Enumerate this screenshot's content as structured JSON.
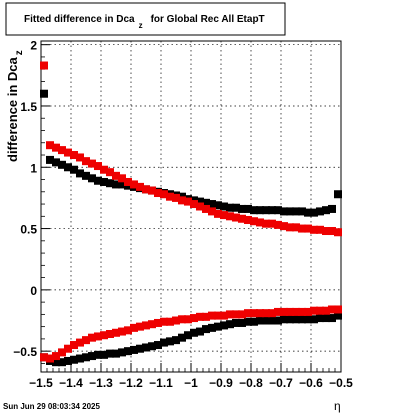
{
  "chart_data": {
    "type": "scatter",
    "title_main": "Fitted difference in Dca",
    "title_sub": "z",
    "title_tail": "for Global Rec All EtapT",
    "ylabel_main": "difference in Dca",
    "ylabel_sub": "z",
    "xlabel": "η",
    "footer": "Sun Jun 29 08:03:34 2025",
    "xlim": [
      -1.5,
      -0.5
    ],
    "ylim": [
      -0.67,
      2.03
    ],
    "x_ticks": [
      -1.5,
      -1.4,
      -1.3,
      -1.2,
      -1.1,
      -1.0,
      -0.9,
      -0.8,
      -0.7,
      -0.6,
      -0.5
    ],
    "x_tick_labels": [
      "−1.5",
      "−1.4",
      "−1.3",
      "−1.2",
      "−1.1",
      "−1",
      "−0.9",
      "−0.8",
      "−0.7",
      "−0.6",
      "−0.5"
    ],
    "y_ticks": [
      -0.5,
      0,
      0.5,
      1,
      1.5,
      2
    ],
    "y_tick_labels": [
      "−0.5",
      "0",
      "0.5",
      "1",
      "1.5",
      "2"
    ],
    "grid": true,
    "colors": {
      "black": "#000000",
      "red": "#ee0000"
    },
    "series": [
      {
        "color": "black",
        "x": [
          -1.49,
          -1.47,
          -1.45,
          -1.43,
          -1.41,
          -1.39,
          -1.37,
          -1.35,
          -1.33,
          -1.31,
          -1.29,
          -1.27,
          -1.25,
          -1.23,
          -1.21,
          -1.19,
          -1.17,
          -1.15,
          -1.13,
          -1.11,
          -1.09,
          -1.07,
          -1.05,
          -1.03,
          -1.01,
          -0.99,
          -0.97,
          -0.95,
          -0.93,
          -0.91,
          -0.89,
          -0.87,
          -0.85,
          -0.83,
          -0.81,
          -0.79,
          -0.77,
          -0.75,
          -0.73,
          -0.71,
          -0.69,
          -0.67,
          -0.65,
          -0.63,
          -0.61,
          -0.59,
          -0.57,
          -0.55,
          -0.53,
          -0.51
        ],
        "y": [
          1.6,
          1.06,
          1.04,
          1.02,
          1.0,
          0.98,
          0.95,
          0.93,
          0.91,
          0.89,
          0.88,
          0.87,
          0.86,
          0.86,
          0.85,
          0.84,
          0.83,
          0.82,
          0.81,
          0.8,
          0.79,
          0.78,
          0.77,
          0.76,
          0.74,
          0.73,
          0.72,
          0.71,
          0.7,
          0.69,
          0.68,
          0.67,
          0.67,
          0.66,
          0.66,
          0.65,
          0.65,
          0.65,
          0.65,
          0.65,
          0.64,
          0.64,
          0.64,
          0.64,
          0.63,
          0.63,
          0.64,
          0.65,
          0.66,
          0.78
        ]
      },
      {
        "color": "black",
        "x": [
          -1.49,
          -1.47,
          -1.45,
          -1.43,
          -1.41,
          -1.39,
          -1.37,
          -1.35,
          -1.33,
          -1.31,
          -1.29,
          -1.27,
          -1.25,
          -1.23,
          -1.21,
          -1.19,
          -1.17,
          -1.15,
          -1.13,
          -1.11,
          -1.09,
          -1.07,
          -1.05,
          -1.03,
          -1.01,
          -0.99,
          -0.97,
          -0.95,
          -0.93,
          -0.91,
          -0.89,
          -0.87,
          -0.85,
          -0.83,
          -0.81,
          -0.79,
          -0.77,
          -0.75,
          -0.73,
          -0.71,
          -0.69,
          -0.67,
          -0.65,
          -0.63,
          -0.61,
          -0.59,
          -0.57,
          -0.55,
          -0.53,
          -0.51
        ],
        "y": [
          -0.55,
          -0.58,
          -0.59,
          -0.59,
          -0.58,
          -0.57,
          -0.56,
          -0.55,
          -0.54,
          -0.53,
          -0.53,
          -0.52,
          -0.52,
          -0.51,
          -0.5,
          -0.49,
          -0.48,
          -0.47,
          -0.46,
          -0.45,
          -0.43,
          -0.42,
          -0.41,
          -0.39,
          -0.37,
          -0.35,
          -0.34,
          -0.32,
          -0.31,
          -0.3,
          -0.29,
          -0.28,
          -0.27,
          -0.27,
          -0.26,
          -0.26,
          -0.25,
          -0.25,
          -0.25,
          -0.25,
          -0.24,
          -0.24,
          -0.24,
          -0.24,
          -0.24,
          -0.24,
          -0.23,
          -0.23,
          -0.23,
          -0.21
        ]
      },
      {
        "color": "red",
        "x": [
          -1.49,
          -1.47,
          -1.45,
          -1.43,
          -1.41,
          -1.39,
          -1.37,
          -1.35,
          -1.33,
          -1.31,
          -1.29,
          -1.27,
          -1.25,
          -1.23,
          -1.21,
          -1.19,
          -1.17,
          -1.15,
          -1.13,
          -1.11,
          -1.09,
          -1.07,
          -1.05,
          -1.03,
          -1.01,
          -0.99,
          -0.97,
          -0.95,
          -0.93,
          -0.91,
          -0.89,
          -0.87,
          -0.85,
          -0.83,
          -0.81,
          -0.79,
          -0.77,
          -0.75,
          -0.73,
          -0.71,
          -0.69,
          -0.67,
          -0.65,
          -0.63,
          -0.61,
          -0.59,
          -0.57,
          -0.55,
          -0.53,
          -0.51
        ],
        "y": [
          1.83,
          1.18,
          1.16,
          1.14,
          1.12,
          1.1,
          1.08,
          1.05,
          1.03,
          1.01,
          0.98,
          0.96,
          0.93,
          0.91,
          0.88,
          0.86,
          0.84,
          0.82,
          0.81,
          0.79,
          0.78,
          0.76,
          0.75,
          0.73,
          0.72,
          0.7,
          0.68,
          0.66,
          0.64,
          0.62,
          0.61,
          0.6,
          0.59,
          0.58,
          0.57,
          0.56,
          0.55,
          0.54,
          0.54,
          0.53,
          0.52,
          0.51,
          0.51,
          0.5,
          0.5,
          0.49,
          0.49,
          0.48,
          0.48,
          0.47
        ]
      },
      {
        "color": "red",
        "x": [
          -1.49,
          -1.47,
          -1.45,
          -1.43,
          -1.41,
          -1.39,
          -1.37,
          -1.35,
          -1.33,
          -1.31,
          -1.29,
          -1.27,
          -1.25,
          -1.23,
          -1.21,
          -1.19,
          -1.17,
          -1.15,
          -1.13,
          -1.11,
          -1.09,
          -1.07,
          -1.05,
          -1.03,
          -1.01,
          -0.99,
          -0.97,
          -0.95,
          -0.93,
          -0.91,
          -0.89,
          -0.87,
          -0.85,
          -0.83,
          -0.81,
          -0.79,
          -0.77,
          -0.75,
          -0.73,
          -0.71,
          -0.69,
          -0.67,
          -0.65,
          -0.63,
          -0.61,
          -0.59,
          -0.57,
          -0.55,
          -0.53,
          -0.51
        ],
        "y": [
          -0.55,
          -0.56,
          -0.54,
          -0.51,
          -0.48,
          -0.45,
          -0.43,
          -0.41,
          -0.39,
          -0.38,
          -0.37,
          -0.36,
          -0.35,
          -0.34,
          -0.33,
          -0.31,
          -0.3,
          -0.29,
          -0.28,
          -0.27,
          -0.26,
          -0.26,
          -0.25,
          -0.24,
          -0.24,
          -0.23,
          -0.22,
          -0.22,
          -0.21,
          -0.21,
          -0.21,
          -0.2,
          -0.2,
          -0.2,
          -0.19,
          -0.19,
          -0.19,
          -0.19,
          -0.19,
          -0.18,
          -0.18,
          -0.18,
          -0.18,
          -0.18,
          -0.18,
          -0.17,
          -0.17,
          -0.17,
          -0.16,
          -0.16
        ]
      }
    ]
  }
}
